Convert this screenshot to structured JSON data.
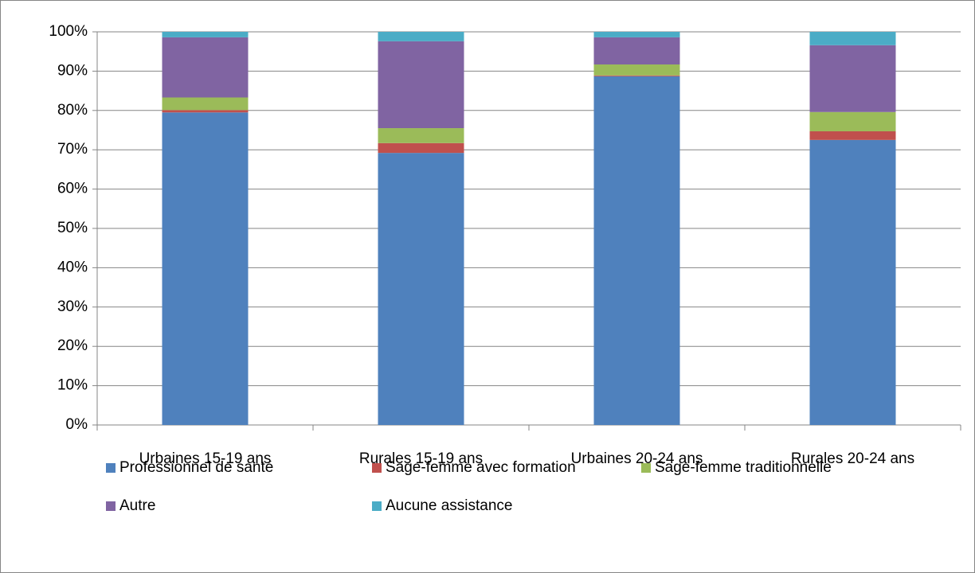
{
  "chart_data": {
    "type": "stacked_bar",
    "categories": [
      "Urbaines 15-19 ans",
      "Rurales 15-19 ans",
      "Urbaines 20-24 ans",
      "Rurales 20-24 ans"
    ],
    "series": [
      {
        "name": "Professionnel de santé",
        "color": "#4f81bd",
        "values": [
          79.5,
          69.2,
          88.7,
          72.5
        ]
      },
      {
        "name": "Sage-femme avec formation",
        "color": "#c0504d",
        "values": [
          0.6,
          2.5,
          0.2,
          2.2
        ]
      },
      {
        "name": "Sage-femme traditionnelle",
        "color": "#9bbb59",
        "values": [
          3.2,
          3.8,
          2.8,
          4.9
        ]
      },
      {
        "name": "Autre",
        "color": "#8064a2",
        "values": [
          15.3,
          22.1,
          6.9,
          17.0
        ]
      },
      {
        "name": "Aucune assistance",
        "color": "#4bacc6",
        "values": [
          1.4,
          2.4,
          1.4,
          3.4
        ]
      }
    ],
    "ylim": [
      0,
      100
    ],
    "yticks": [
      {
        "value": 0,
        "label": "0%"
      },
      {
        "value": 10,
        "label": "10%"
      },
      {
        "value": 20,
        "label": "20%"
      },
      {
        "value": 30,
        "label": "30%"
      },
      {
        "value": 40,
        "label": "40%"
      },
      {
        "value": 50,
        "label": "50%"
      },
      {
        "value": 60,
        "label": "60%"
      },
      {
        "value": 70,
        "label": "70%"
      },
      {
        "value": 80,
        "label": "80%"
      },
      {
        "value": 90,
        "label": "90%"
      },
      {
        "value": 100,
        "label": "100%"
      }
    ],
    "grid": true,
    "legend": "bottom"
  }
}
